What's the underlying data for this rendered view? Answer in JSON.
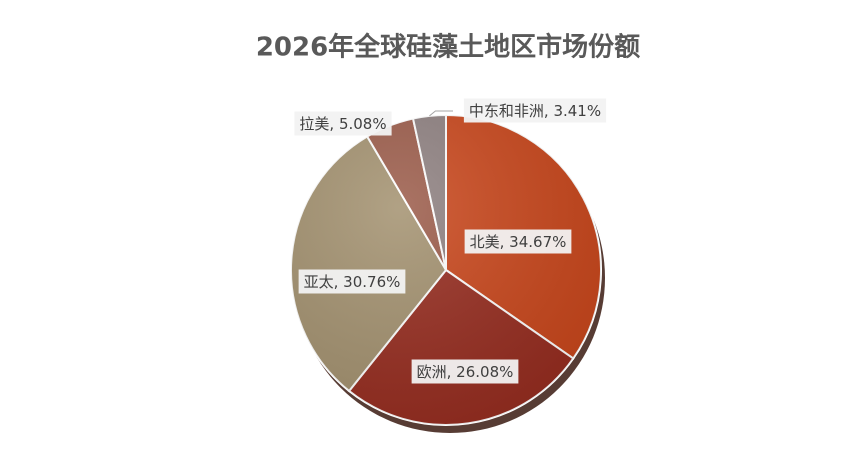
{
  "chart_data": {
    "type": "pie",
    "title": "2026年全球硅藻土地区市场份额",
    "categories": [
      "北美",
      "欧洲",
      "亚太",
      "拉美",
      "中东和非洲"
    ],
    "values": [
      34.67,
      26.08,
      30.76,
      5.08,
      3.41
    ],
    "value_labels": [
      "34.67%",
      "26.08%",
      "30.76%",
      "5.08%",
      "3.41%"
    ],
    "label_separator": ", ",
    "colors": [
      "#c9461b",
      "#962c1f",
      "#a3916f",
      "#9b5b49",
      "#8e8080"
    ]
  }
}
